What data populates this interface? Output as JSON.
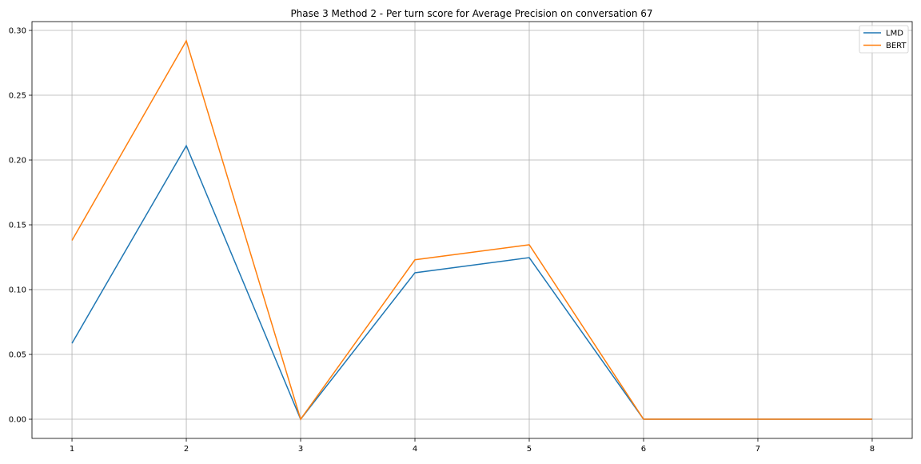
{
  "chart_data": {
    "type": "line",
    "title": "Phase 3 Method 2 - Per turn score for Average Precision on conversation 67",
    "xlabel": "",
    "ylabel": "",
    "x": [
      1,
      2,
      3,
      4,
      5,
      6,
      7,
      8
    ],
    "xticks": [
      "1",
      "2",
      "3",
      "4",
      "5",
      "6",
      "7",
      "8"
    ],
    "yticks": [
      "0.00",
      "0.05",
      "0.10",
      "0.15",
      "0.20",
      "0.25",
      "0.30"
    ],
    "xlim": [
      0.65,
      8.35
    ],
    "ylim": [
      -0.0148,
      0.3068
    ],
    "grid": true,
    "legend_position": "top-right",
    "series": [
      {
        "name": "LMD",
        "color": "#1f77b4",
        "values": [
          0.0586,
          0.211,
          0.0,
          0.113,
          0.1247,
          0.0,
          0.0,
          0.0
        ]
      },
      {
        "name": "BERT",
        "color": "#ff7f0e",
        "values": [
          0.138,
          0.292,
          0.0,
          0.123,
          0.1346,
          0.0,
          0.0,
          0.0
        ]
      }
    ]
  }
}
